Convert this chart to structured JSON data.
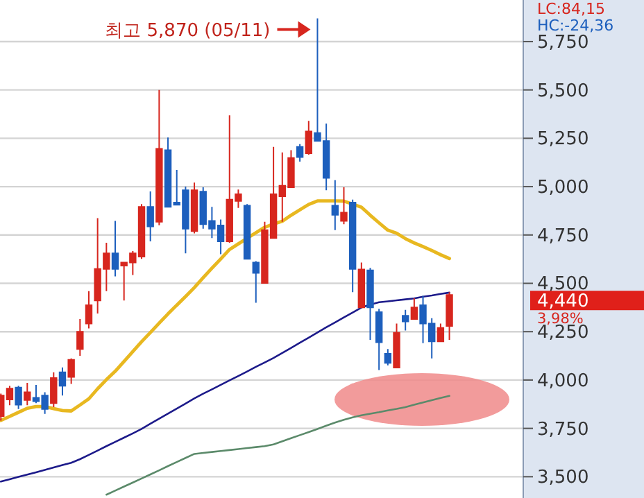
{
  "chart_data": {
    "type": "candlestick",
    "annotations": [
      "최고 5,870 (05/11)",
      "4,440",
      "3,98%",
      "LC:84,15",
      "HC:-24,36"
    ],
    "categories": [
      null,
      null,
      null,
      null,
      null,
      null,
      null,
      null,
      null,
      null,
      null,
      null,
      null,
      null,
      null,
      null,
      null,
      null,
      null,
      null,
      null,
      null,
      null,
      null,
      null,
      null,
      null,
      null,
      null,
      null,
      null,
      null,
      null,
      null,
      null,
      null,
      null,
      null,
      null,
      null,
      null,
      null,
      null,
      null,
      null,
      null,
      null,
      null,
      null,
      null,
      null,
      null
    ],
    "ohlc": [
      [
        3813,
        3930,
        3790,
        3920
      ],
      [
        3899,
        3970,
        3870,
        3956
      ],
      [
        3961,
        3970,
        3850,
        3872
      ],
      [
        3897,
        3985,
        3870,
        3937
      ],
      [
        3908,
        3975,
        3880,
        3890
      ],
      [
        3920,
        3937,
        3825,
        3850
      ],
      [
        3880,
        4040,
        3860,
        4010
      ],
      [
        4040,
        4065,
        3920,
        3970
      ],
      [
        4016,
        4112,
        3980,
        4105
      ],
      [
        4160,
        4315,
        4125,
        4250
      ],
      [
        4292,
        4460,
        4267,
        4387
      ],
      [
        4411,
        4837,
        4344,
        4574
      ],
      [
        4574,
        4710,
        4460,
        4655
      ],
      [
        4655,
        4823,
        4536,
        4574
      ],
      [
        4591,
        4610,
        4411,
        4608
      ],
      [
        4608,
        4667,
        4543,
        4655
      ],
      [
        4638,
        4910,
        4626,
        4895
      ],
      [
        4895,
        4975,
        4717,
        4794
      ],
      [
        4818,
        5500,
        4800,
        5196
      ],
      [
        5189,
        5254,
        4895,
        4895
      ],
      [
        4918,
        5086,
        4906,
        4906
      ],
      [
        4981,
        5000,
        4655,
        4782
      ],
      [
        4770,
        5021,
        4758,
        4981
      ],
      [
        4974,
        4997,
        4782,
        4806
      ],
      [
        4823,
        4895,
        4734,
        4782
      ],
      [
        4799,
        4830,
        4651,
        4717
      ],
      [
        4717,
        5369,
        4710,
        4933
      ],
      [
        4926,
        4985,
        4890,
        4961
      ],
      [
        4902,
        4910,
        4626,
        4626
      ],
      [
        4608,
        4615,
        4400,
        4554
      ],
      [
        4502,
        4818,
        4502,
        4775
      ],
      [
        4734,
        5206,
        4734,
        4961
      ],
      [
        4950,
        5177,
        4818,
        5005
      ],
      [
        4997,
        5189,
        4997,
        5148
      ],
      [
        5206,
        5220,
        5129,
        5153
      ],
      [
        5172,
        5340,
        5165,
        5285
      ],
      [
        5277,
        5870,
        5236,
        5236
      ],
      [
        5236,
        5326,
        4981,
        5045
      ],
      [
        4902,
        5033,
        4775,
        4854
      ],
      [
        4823,
        4997,
        4806,
        4866
      ],
      [
        4918,
        4933,
        4454,
        4574
      ],
      [
        4375,
        4608,
        4375,
        4572
      ],
      [
        4567,
        4580,
        4208,
        4375
      ],
      [
        4351,
        4368,
        4052,
        4195
      ],
      [
        4136,
        4160,
        4076,
        4088
      ],
      [
        4064,
        4292,
        4064,
        4244
      ],
      [
        4332,
        4363,
        4256,
        4303
      ],
      [
        4315,
        4423,
        4315,
        4375
      ],
      [
        4387,
        4435,
        4191,
        4292
      ],
      [
        4292,
        4320,
        4112,
        4200
      ],
      [
        4200,
        4292,
        4200,
        4270
      ],
      [
        4279,
        4454,
        4208,
        4440
      ]
    ],
    "colors": [
      "#d7261e",
      "#d7261e",
      "#1d5fbd",
      "#d7261e",
      "#1d5fbd",
      "#1d5fbd",
      "#d7261e",
      "#1d5fbd",
      "#d7261e",
      "#d7261e",
      "#d7261e",
      "#d7261e",
      "#d7261e",
      "#1d5fbd",
      "#d7261e",
      "#d7261e",
      "#d7261e",
      "#1d5fbd",
      "#d7261e",
      "#1d5fbd",
      "#1d5fbd",
      "#1d5fbd",
      "#d7261e",
      "#1d5fbd",
      "#1d5fbd",
      "#1d5fbd",
      "#d7261e",
      "#d7261e",
      "#1d5fbd",
      "#1d5fbd",
      "#d7261e",
      "#d7261e",
      "#d7261e",
      "#d7261e",
      "#1d5fbd",
      "#d7261e",
      "#1d5fbd",
      "#1d5fbd",
      "#1d5fbd",
      "#d7261e",
      "#1d5fbd",
      "#d7261e",
      "#1d5fbd",
      "#1d5fbd",
      "#1d5fbd",
      "#d7261e",
      "#1d5fbd",
      "#d7261e",
      "#1d5fbd",
      "#1d5fbd",
      "#d7261e",
      "#d7261e"
    ],
    "series": [
      {
        "type": "line",
        "color": "#e8b820",
        "values": [
          3791,
          3812,
          3833,
          3854,
          3863,
          3863,
          3852,
          3842,
          3840,
          3871,
          3903,
          3955,
          4002,
          4045,
          4096,
          4147,
          4198,
          4246,
          4294,
          4342,
          4387,
          4432,
          4478,
          4529,
          4578,
          4626,
          4675,
          4704,
          4733,
          4762,
          4790,
          4807,
          4821,
          4852,
          4880,
          4908,
          4926,
          4926,
          4926,
          4925,
          4910,
          4894,
          4852,
          4813,
          4775,
          4759,
          4731,
          4709,
          4690,
          4670,
          4648,
          4628
        ]
      },
      {
        "type": "line",
        "color": "#1c1a8a",
        "values": [
          3475,
          3487,
          3499,
          3511,
          3523,
          3535,
          3548,
          3560,
          3572,
          3591,
          3613,
          3635,
          3658,
          3680,
          3702,
          3724,
          3747,
          3774,
          3800,
          3826,
          3852,
          3878,
          3905,
          3929,
          3952,
          3975,
          3998,
          4021,
          4044,
          4068,
          4091,
          4114,
          4140,
          4166,
          4193,
          4219,
          4246,
          4273,
          4298,
          4324,
          4349,
          4375,
          4390,
          4402,
          4407,
          4412,
          4417,
          4422,
          4431,
          4437,
          4445,
          4452
        ]
      },
      {
        "type": "line",
        "color": "#5b8a6a",
        "values": [
          null,
          null,
          null,
          null,
          null,
          null,
          null,
          null,
          null,
          null,
          null,
          null,
          3407,
          3428,
          3449,
          3470,
          3491,
          3512,
          3533,
          3555,
          3576,
          3597,
          3618,
          3623,
          3628,
          3633,
          3638,
          3643,
          3648,
          3653,
          3658,
          3667,
          3683,
          3699,
          3715,
          3731,
          3747,
          3764,
          3780,
          3794,
          3807,
          3818,
          3826,
          3834,
          3843,
          3851,
          3860,
          3872,
          3884,
          3896,
          3907,
          3918
        ]
      }
    ],
    "ylim": [
      3390,
      5965
    ],
    "yticks": [
      {
        "value": 3500,
        "label": "3,500"
      },
      {
        "value": 3750,
        "label": "3,750"
      },
      {
        "value": 4000,
        "label": "4,000"
      },
      {
        "value": 4250,
        "label": "4,250"
      },
      {
        "value": 4500,
        "label": "4,500"
      },
      {
        "value": 4750,
        "label": "4,750"
      },
      {
        "value": 5000,
        "label": "5,000"
      },
      {
        "value": 5250,
        "label": "5,250"
      },
      {
        "value": 5500,
        "label": "5,500"
      },
      {
        "value": 5750,
        "label": "5,750"
      }
    ],
    "grid": "y",
    "tick_labels": "y"
  }
}
